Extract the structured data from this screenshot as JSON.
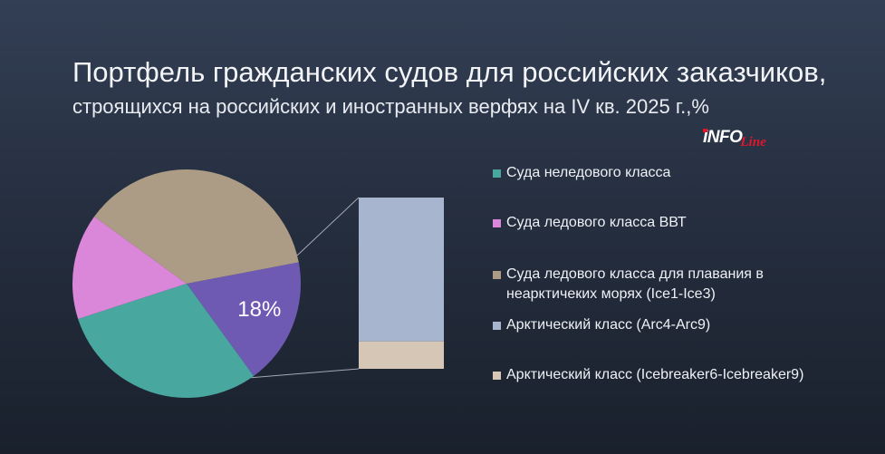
{
  "header": {
    "title": "Портфель гражданских судов для российских заказчиков,",
    "subtitle": "строящихся на российских и иностранных верфях на IV кв. 2025 г.,%",
    "logo": {
      "main": "INFO",
      "sub": "Line"
    }
  },
  "colors": {
    "non_ice": "#48a8a0",
    "ice_vvt": "#da86d9",
    "ice_nonarctic": "#ad9c85",
    "arctic_group": "#6e5ab3",
    "arc4_arc9": "#a7b5ce",
    "icebreaker": "#d5c6b6",
    "connector": "#a3a9b5"
  },
  "legend": [
    {
      "key": "non_ice",
      "label": "Суда неледового класса",
      "color": "#48a8a0"
    },
    {
      "key": "ice_vvt",
      "label": "Суда ледового класса ВВТ",
      "color": "#da86d9"
    },
    {
      "key": "ice_nonarctic",
      "label": "Суда ледового класса для плавания в неарктичеких морях (Ice1-Ice3)",
      "color": "#ad9c85"
    },
    {
      "key": "arc4_arc9",
      "label": "Арктический класс (Arc4-Arc9)",
      "color": "#a7b5ce"
    },
    {
      "key": "icebreaker",
      "label": "Арктический класс (Icebreaker6-Icebreaker9)",
      "color": "#d5c6b6"
    }
  ],
  "chart_data": {
    "type": "pie",
    "title": "Портфель гражданских судов для российских заказчиков, строящихся на российских и иностранных верфях на IV кв. 2025 г.,%",
    "pie": {
      "slices": [
        {
          "name": "Суда неледового класса",
          "value": 30,
          "color": "#48a8a0"
        },
        {
          "name": "Суда ледового класса ВВТ",
          "value": 15,
          "color": "#da86d9"
        },
        {
          "name": "Суда ледового класса для плавания в неарктичеких морях (Ice1-Ice3)",
          "value": 37,
          "color": "#ad9c85"
        },
        {
          "name": "Арктический класс",
          "value": 18,
          "color": "#6e5ab3",
          "label": "18%"
        }
      ]
    },
    "breakdown_bar": {
      "of_slice": "Арктический класс",
      "segments": [
        {
          "name": "Арктический класс (Arc4-Arc9)",
          "value": 84,
          "color": "#a7b5ce"
        },
        {
          "name": "Арктический класс (Icebreaker6-Icebreaker9)",
          "value": 16,
          "color": "#d5c6b6"
        }
      ]
    }
  }
}
